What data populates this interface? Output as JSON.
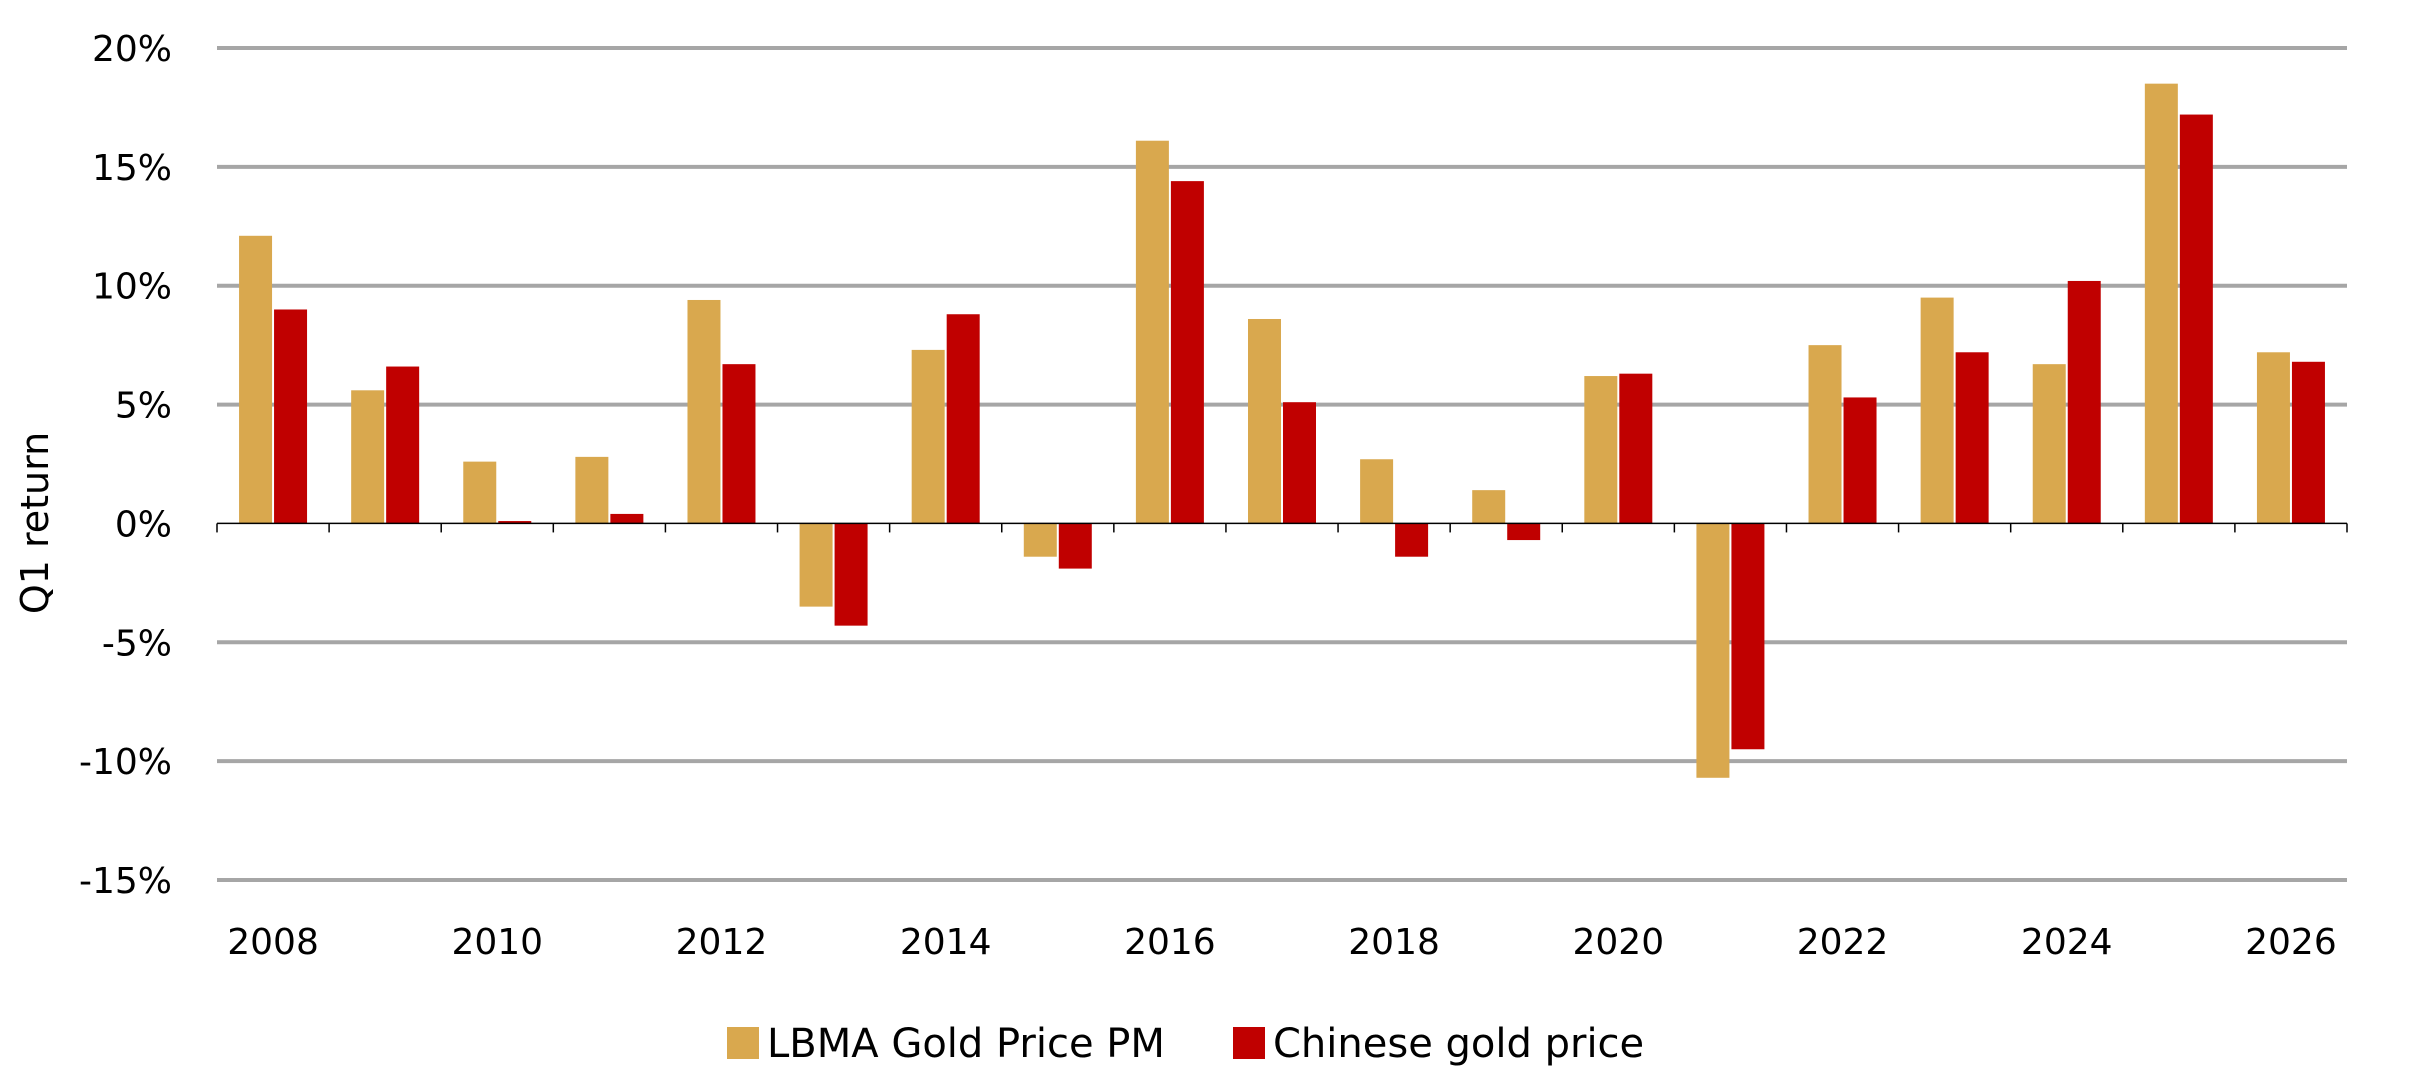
{
  "chart_data": {
    "type": "bar",
    "title": "",
    "xlabel": "",
    "ylabel": "Q1 return",
    "ylim": [
      -15,
      20
    ],
    "ytick_step": 5,
    "ytick_suffix": "%",
    "grid": true,
    "legend_position": "bottom-center",
    "categories": [
      "2008",
      "2009",
      "2010",
      "2011",
      "2012",
      "2013",
      "2014",
      "2015",
      "2016",
      "2017",
      "2018",
      "2019",
      "2020",
      "2021",
      "2022",
      "2023",
      "2024",
      "2025",
      "2026"
    ],
    "xtick_labels": [
      "2008",
      "2010",
      "2012",
      "2014",
      "2016",
      "2018",
      "2020",
      "2022",
      "2024",
      "2026"
    ],
    "series": [
      {
        "name": "LBMA Gold Price PM",
        "color": "#d9a84e",
        "values": [
          12.1,
          5.6,
          2.6,
          2.8,
          9.4,
          -3.5,
          7.3,
          -1.4,
          16.1,
          8.6,
          2.7,
          1.4,
          6.2,
          -10.7,
          7.5,
          9.5,
          6.7,
          18.5,
          7.2
        ]
      },
      {
        "name": "Chinese gold price",
        "color": "#c00000",
        "values": [
          9.0,
          6.6,
          0.1,
          0.4,
          6.7,
          -4.3,
          8.8,
          -1.9,
          14.4,
          5.1,
          -1.4,
          -0.7,
          6.3,
          -9.5,
          5.3,
          7.2,
          10.2,
          17.2,
          6.8
        ]
      }
    ]
  }
}
